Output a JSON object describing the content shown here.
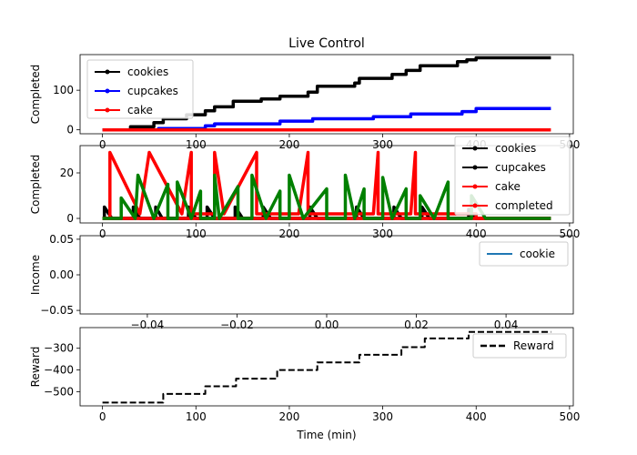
{
  "chart_data": [
    {
      "type": "line",
      "title": "Live Control",
      "ylabel": "Completed",
      "xlabel": "",
      "xlim": [
        -24,
        504
      ],
      "ylim": [
        -10,
        190
      ],
      "xticks": [
        0,
        100,
        200,
        300,
        400,
        500
      ],
      "xtick_labels": [
        "0",
        "100",
        "200",
        "300",
        "400",
        "500"
      ],
      "yticks": [
        0,
        100
      ],
      "ytick_labels": [
        "0",
        "100"
      ],
      "grid": false,
      "legend": "upper-left",
      "series": [
        {
          "name": "cookies",
          "color": "#000000",
          "marker": true,
          "x": [
            0,
            30,
            30,
            55,
            55,
            65,
            65,
            90,
            90,
            110,
            110,
            120,
            120,
            140,
            140,
            170,
            170,
            190,
            190,
            220,
            220,
            230,
            230,
            270,
            270,
            275,
            275,
            310,
            310,
            325,
            325,
            340,
            340,
            380,
            380,
            390,
            390,
            400,
            400,
            480
          ],
          "y": [
            0,
            0,
            8,
            8,
            18,
            18,
            28,
            28,
            38,
            38,
            48,
            48,
            58,
            58,
            72,
            72,
            78,
            78,
            85,
            85,
            95,
            95,
            110,
            110,
            118,
            118,
            130,
            130,
            140,
            140,
            150,
            150,
            162,
            162,
            172,
            172,
            177,
            177,
            182,
            182
          ]
        },
        {
          "name": "cupcakes",
          "color": "#0000ff",
          "marker": true,
          "x": [
            0,
            60,
            60,
            110,
            110,
            120,
            120,
            190,
            190,
            225,
            225,
            290,
            290,
            330,
            330,
            385,
            385,
            400,
            400,
            480
          ],
          "y": [
            0,
            0,
            3,
            3,
            10,
            10,
            15,
            15,
            22,
            22,
            28,
            28,
            33,
            33,
            40,
            40,
            46,
            46,
            54,
            54
          ]
        },
        {
          "name": "cake",
          "color": "#ff0000",
          "marker": true,
          "x": [
            0,
            480
          ],
          "y": [
            0,
            0
          ]
        }
      ]
    },
    {
      "type": "line",
      "title": "",
      "ylabel": "Completed",
      "xlabel": "",
      "xlim": [
        -24,
        504
      ],
      "ylim": [
        -2,
        32
      ],
      "xticks": [
        0,
        100,
        200,
        300,
        400,
        500
      ],
      "xtick_labels": [
        "0",
        "100",
        "200",
        "300",
        "400",
        "500"
      ],
      "yticks": [
        0,
        20
      ],
      "ytick_labels": [
        "0",
        "20"
      ],
      "grid": false,
      "legend": "upper-right",
      "series": [
        {
          "name": "cookies",
          "color": "#000000",
          "marker": true,
          "x": [
            0,
            2,
            2,
            10,
            30,
            33,
            33,
            40,
            55,
            57,
            57,
            64,
            90,
            92,
            92,
            100,
            110,
            112,
            112,
            120,
            140,
            142,
            142,
            150,
            170,
            172,
            172,
            180,
            220,
            222,
            222,
            230,
            270,
            272,
            272,
            280,
            310,
            312,
            312,
            320,
            340,
            342,
            342,
            350,
            390,
            392,
            392,
            400,
            480
          ],
          "y": [
            0,
            0,
            5,
            0,
            0,
            0,
            5,
            0,
            0,
            0,
            5,
            0,
            0,
            0,
            5,
            0,
            0,
            0,
            5,
            0,
            0,
            0,
            5,
            0,
            0,
            0,
            5,
            0,
            0,
            0,
            5,
            0,
            0,
            0,
            5,
            0,
            0,
            0,
            5,
            0,
            0,
            0,
            5,
            0,
            0,
            0,
            4,
            0,
            0
          ]
        },
        {
          "name": "cupcakes",
          "color": "#000000",
          "marker": true,
          "x": [
            0,
            480
          ],
          "y": [
            0,
            0
          ]
        },
        {
          "name": "cake",
          "color": "#ff0000",
          "marker": true,
          "x": [
            0,
            8,
            8,
            40,
            40,
            50,
            50,
            85,
            85,
            95,
            95,
            120,
            120,
            130,
            130,
            165,
            165,
            195,
            195,
            210,
            210,
            220,
            220,
            260,
            260,
            290,
            290,
            295,
            295,
            330,
            330,
            335,
            335,
            370,
            370,
            375,
            375,
            400,
            400,
            480
          ],
          "y": [
            0,
            0,
            29,
            2,
            2,
            29,
            29,
            2,
            2,
            29,
            2,
            2,
            29,
            2,
            2,
            29,
            2,
            2,
            2,
            2,
            2,
            29,
            2,
            2,
            2,
            2,
            2,
            29,
            2,
            2,
            2,
            29,
            2,
            2,
            2,
            2,
            2,
            2,
            0,
            0
          ]
        },
        {
          "name": "completed",
          "color": "#ff0000",
          "marker": true,
          "x": [
            0,
            480
          ],
          "y": [
            0,
            0
          ]
        },
        {
          "name": "",
          "color": "#008000",
          "marker": true,
          "x": [
            0,
            20,
            20,
            35,
            35,
            38,
            38,
            55,
            55,
            70,
            70,
            80,
            80,
            95,
            95,
            105,
            105,
            120,
            120,
            125,
            125,
            145,
            145,
            160,
            160,
            175,
            175,
            190,
            190,
            200,
            200,
            215,
            215,
            240,
            240,
            260,
            260,
            270,
            270,
            280,
            280,
            300,
            300,
            310,
            310,
            325,
            325,
            340,
            340,
            355,
            355,
            370,
            370,
            395,
            395,
            410,
            410,
            480
          ],
          "y": [
            0,
            0,
            9,
            0,
            0,
            19,
            19,
            0,
            0,
            15,
            0,
            0,
            16,
            0,
            0,
            12,
            0,
            0,
            19,
            0,
            0,
            14,
            0,
            0,
            19,
            0,
            0,
            12,
            0,
            0,
            19,
            0,
            0,
            13,
            0,
            0,
            19,
            0,
            0,
            13,
            0,
            0,
            18,
            0,
            0,
            13,
            0,
            0,
            10,
            0,
            0,
            16,
            0,
            0,
            10,
            0,
            0,
            0
          ]
        }
      ]
    },
    {
      "type": "line",
      "title": "",
      "ylabel": "Income",
      "xlabel": "",
      "xlim": [
        -0.055,
        0.055
      ],
      "ylim": [
        -0.055,
        0.055
      ],
      "xticks": [
        -0.04,
        -0.02,
        0.0,
        0.02,
        0.04
      ],
      "xtick_labels": [
        "−0.04",
        "−0.02",
        "0.00",
        "0.02",
        "0.04"
      ],
      "yticks": [
        -0.05,
        0.0,
        0.05
      ],
      "ytick_labels": [
        "−0.05",
        "0.00",
        "0.05"
      ],
      "grid": false,
      "legend": "upper-right",
      "series": [
        {
          "name": "cookie",
          "color": "#1f77b4",
          "marker": false,
          "x": [],
          "y": []
        }
      ]
    },
    {
      "type": "line",
      "title": "",
      "ylabel": "Reward",
      "xlabel": "Time (min)",
      "xlim": [
        -24,
        504
      ],
      "ylim": [
        -565,
        -205
      ],
      "xticks": [
        0,
        100,
        200,
        300,
        400,
        500
      ],
      "xtick_labels": [
        "0",
        "100",
        "200",
        "300",
        "400",
        "500"
      ],
      "yticks": [
        -500,
        -400,
        -300
      ],
      "ytick_labels": [
        "−500",
        "−400",
        "−300"
      ],
      "grid": false,
      "legend": "upper-right",
      "series": [
        {
          "name": "Reward",
          "color": "#000000",
          "dashed": true,
          "x": [
            0,
            65,
            65,
            110,
            110,
            143,
            143,
            187,
            187,
            230,
            230,
            275,
            275,
            320,
            320,
            345,
            345,
            392,
            392,
            480
          ],
          "y": [
            -550,
            -550,
            -510,
            -510,
            -475,
            -475,
            -440,
            -440,
            -400,
            -400,
            -365,
            -365,
            -330,
            -330,
            -295,
            -295,
            -255,
            -255,
            -225,
            -225
          ]
        }
      ]
    }
  ]
}
